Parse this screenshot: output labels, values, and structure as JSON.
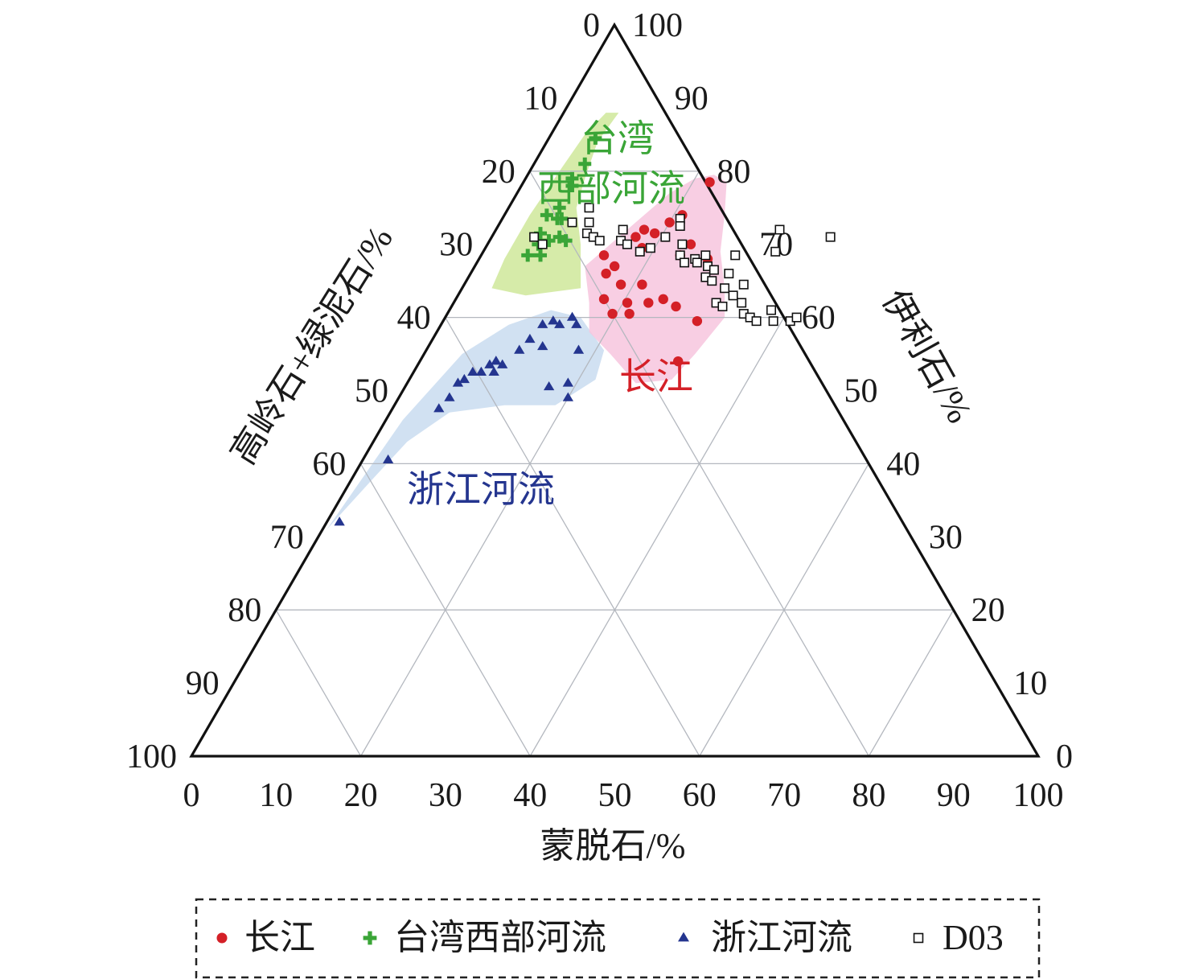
{
  "chart_data": {
    "type": "scatter",
    "subtype": "ternary",
    "axes": {
      "bottom": {
        "label": "蒙脱石/%",
        "ticks": [
          "0",
          "10",
          "20",
          "30",
          "40",
          "50",
          "60",
          "70",
          "80",
          "90",
          "100"
        ]
      },
      "left": {
        "label": "高岭石+绿泥石/%",
        "ticks": [
          "0",
          "10",
          "20",
          "30",
          "40",
          "50",
          "60",
          "70",
          "80",
          "90",
          "100"
        ]
      },
      "right": {
        "label": "伊利石/%",
        "ticks": [
          "100",
          "90",
          "80",
          "70",
          "60",
          "50",
          "40",
          "30",
          "20",
          "10",
          "0"
        ]
      }
    },
    "grid": true,
    "colors": {
      "changjiang": "#d42027",
      "taiwan": "#3aa537",
      "zhejiang": "#24358f",
      "d03": "#111111",
      "changjiang_region": "#f7c6de",
      "taiwan_region": "#cfe79a",
      "zhejiang_region": "#c9dcf0",
      "grid": "#b4b8bf"
    },
    "region_labels": [
      {
        "series": "taiwan",
        "lines": [
          "台湾",
          "西部河流"
        ]
      },
      {
        "series": "changjiang",
        "lines": [
          "长江"
        ]
      },
      {
        "series": "zhejiang",
        "lines": [
          "浙江河流"
        ]
      }
    ],
    "legend": {
      "position": "bottom",
      "entries": [
        {
          "marker": "circle",
          "series": "changjiang",
          "label": "长江"
        },
        {
          "marker": "plus",
          "series": "taiwan",
          "label": "台湾西部河流"
        },
        {
          "marker": "triangle",
          "series": "zhejiang",
          "label": "浙江河流"
        },
        {
          "marker": "square",
          "series": "d03",
          "label": "D03"
        }
      ]
    },
    "series": [
      {
        "key": "changjiang",
        "name": "长江",
        "marker": "circle",
        "points": [
          {
            "smectite": 14.5,
            "illite": 68.5
          },
          {
            "smectite": 17,
            "illite": 71
          },
          {
            "smectite": 17.5,
            "illite": 72
          },
          {
            "smectite": 18.5,
            "illite": 69.5
          },
          {
            "smectite": 19,
            "illite": 71.5
          },
          {
            "smectite": 16,
            "illite": 66
          },
          {
            "smectite": 16.5,
            "illite": 67
          },
          {
            "smectite": 17.5,
            "illite": 62.5
          },
          {
            "smectite": 18.5,
            "illite": 64.5
          },
          {
            "smectite": 21,
            "illite": 64.5
          },
          {
            "smectite": 20.5,
            "illite": 62
          },
          {
            "smectite": 21.5,
            "illite": 60.5
          },
          {
            "smectite": 23,
            "illite": 62
          },
          {
            "smectite": 24.5,
            "illite": 62.5
          },
          {
            "smectite": 19.5,
            "illite": 60.5
          },
          {
            "smectite": 20,
            "illite": 73
          },
          {
            "smectite": 21,
            "illite": 74
          },
          {
            "smectite": 22,
            "illite": 78.5
          },
          {
            "smectite": 23.5,
            "illite": 68.5
          },
          {
            "smectite": 24,
            "illite": 70
          },
          {
            "smectite": 26.5,
            "illite": 61.5
          },
          {
            "smectite": 27,
            "illite": 68
          },
          {
            "smectite": 30,
            "illite": 59.5
          },
          {
            "smectite": 30.5,
            "illite": 54
          }
        ]
      },
      {
        "key": "taiwan",
        "name": "台湾西部河流",
        "marker": "plus",
        "points": [
          {
            "smectite": 5.5,
            "illite": 84.5
          },
          {
            "smectite": 6,
            "illite": 81
          },
          {
            "smectite": 5.5,
            "illite": 79
          },
          {
            "smectite": 6,
            "illite": 78
          },
          {
            "smectite": 6,
            "illite": 75
          },
          {
            "smectite": 5,
            "illite": 74
          },
          {
            "smectite": 6.5,
            "illite": 73.5
          },
          {
            "smectite": 7,
            "illite": 73.5
          },
          {
            "smectite": 5.5,
            "illite": 71.5
          },
          {
            "smectite": 6,
            "illite": 70
          },
          {
            "smectite": 7,
            "illite": 70.5
          },
          {
            "smectite": 8,
            "illite": 71
          },
          {
            "smectite": 9,
            "illite": 70.5
          },
          {
            "smectite": 5.5,
            "illite": 68.5
          },
          {
            "smectite": 7,
            "illite": 68.5
          }
        ]
      },
      {
        "key": "zhejiang",
        "name": "浙江河流",
        "marker": "triangle",
        "points": [
          {
            "smectite": 1.5,
            "illite": 32
          },
          {
            "smectite": 3,
            "illite": 40.5
          },
          {
            "smectite": 5.5,
            "illite": 47.5
          },
          {
            "smectite": 6,
            "illite": 49
          },
          {
            "smectite": 6,
            "illite": 51
          },
          {
            "smectite": 6.5,
            "illite": 51.5
          },
          {
            "smectite": 7,
            "illite": 52.5
          },
          {
            "smectite": 8,
            "illite": 52.5
          },
          {
            "smectite": 8.5,
            "illite": 53.5
          },
          {
            "smectite": 9,
            "illite": 54
          },
          {
            "smectite": 9.5,
            "illite": 52.5
          },
          {
            "smectite": 10,
            "illite": 53.5
          },
          {
            "smectite": 11,
            "illite": 55.5
          },
          {
            "smectite": 11.5,
            "illite": 57
          },
          {
            "smectite": 12,
            "illite": 59
          },
          {
            "smectite": 13,
            "illite": 59.5
          },
          {
            "smectite": 13.5,
            "illite": 56
          },
          {
            "smectite": 14,
            "illite": 59
          },
          {
            "smectite": 15,
            "illite": 60
          },
          {
            "smectite": 16,
            "illite": 59
          },
          {
            "smectite": 17,
            "illite": 50.5
          },
          {
            "smectite": 18,
            "illite": 55.5
          },
          {
            "smectite": 19,
            "illite": 51
          },
          {
            "smectite": 20,
            "illite": 49
          }
        ]
      },
      {
        "key": "d03",
        "name": "D03",
        "marker": "square",
        "points": [
          {
            "smectite": 5,
            "illite": 71
          },
          {
            "smectite": 6.5,
            "illite": 70
          },
          {
            "smectite": 8.5,
            "illite": 73
          },
          {
            "smectite": 9.5,
            "illite": 75
          },
          {
            "smectite": 10.5,
            "illite": 73
          },
          {
            "smectite": 11,
            "illite": 71.5
          },
          {
            "smectite": 12,
            "illite": 71
          },
          {
            "smectite": 13,
            "illite": 70.5
          },
          {
            "smectite": 15,
            "illite": 72
          },
          {
            "smectite": 15.5,
            "illite": 70.5
          },
          {
            "smectite": 16.5,
            "illite": 70
          },
          {
            "smectite": 18.5,
            "illite": 69
          },
          {
            "smectite": 19.5,
            "illite": 69.5
          },
          {
            "smectite": 20.5,
            "illite": 71
          },
          {
            "smectite": 21,
            "illite": 73.5
          },
          {
            "smectite": 21.5,
            "illite": 72.5
          },
          {
            "smectite": 23,
            "illite": 70
          },
          {
            "smectite": 23.5,
            "illite": 68.5
          },
          {
            "smectite": 24.5,
            "illite": 67.5
          },
          {
            "smectite": 25.5,
            "illite": 68
          },
          {
            "smectite": 26,
            "illite": 67.5
          },
          {
            "smectite": 26.5,
            "illite": 68.5
          },
          {
            "smectite": 27.5,
            "illite": 67
          },
          {
            "smectite": 28,
            "illite": 65.5
          },
          {
            "smectite": 28.5,
            "illite": 66.5
          },
          {
            "smectite": 29,
            "illite": 65
          },
          {
            "smectite": 30,
            "illite": 68.5
          },
          {
            "smectite": 30.5,
            "illite": 66
          },
          {
            "smectite": 31,
            "illite": 64
          },
          {
            "smectite": 31,
            "illite": 62
          },
          {
            "smectite": 32,
            "illite": 61.5
          },
          {
            "smectite": 32.5,
            "illite": 63
          },
          {
            "smectite": 33,
            "illite": 64.5
          },
          {
            "smectite": 34,
            "illite": 62
          },
          {
            "smectite": 35,
            "illite": 60.5
          },
          {
            "smectite": 36,
            "illite": 60
          },
          {
            "smectite": 37,
            "illite": 59.5
          },
          {
            "smectite": 38,
            "illite": 61
          },
          {
            "smectite": 39,
            "illite": 59.5
          },
          {
            "smectite": 41,
            "illite": 59.5
          },
          {
            "smectite": 41.5,
            "illite": 60
          },
          {
            "smectite": 40,
            "illite": 71
          },
          {
            "smectite": 34.5,
            "illite": 69
          },
          {
            "smectite": 33.5,
            "illite": 72
          }
        ]
      }
    ]
  }
}
